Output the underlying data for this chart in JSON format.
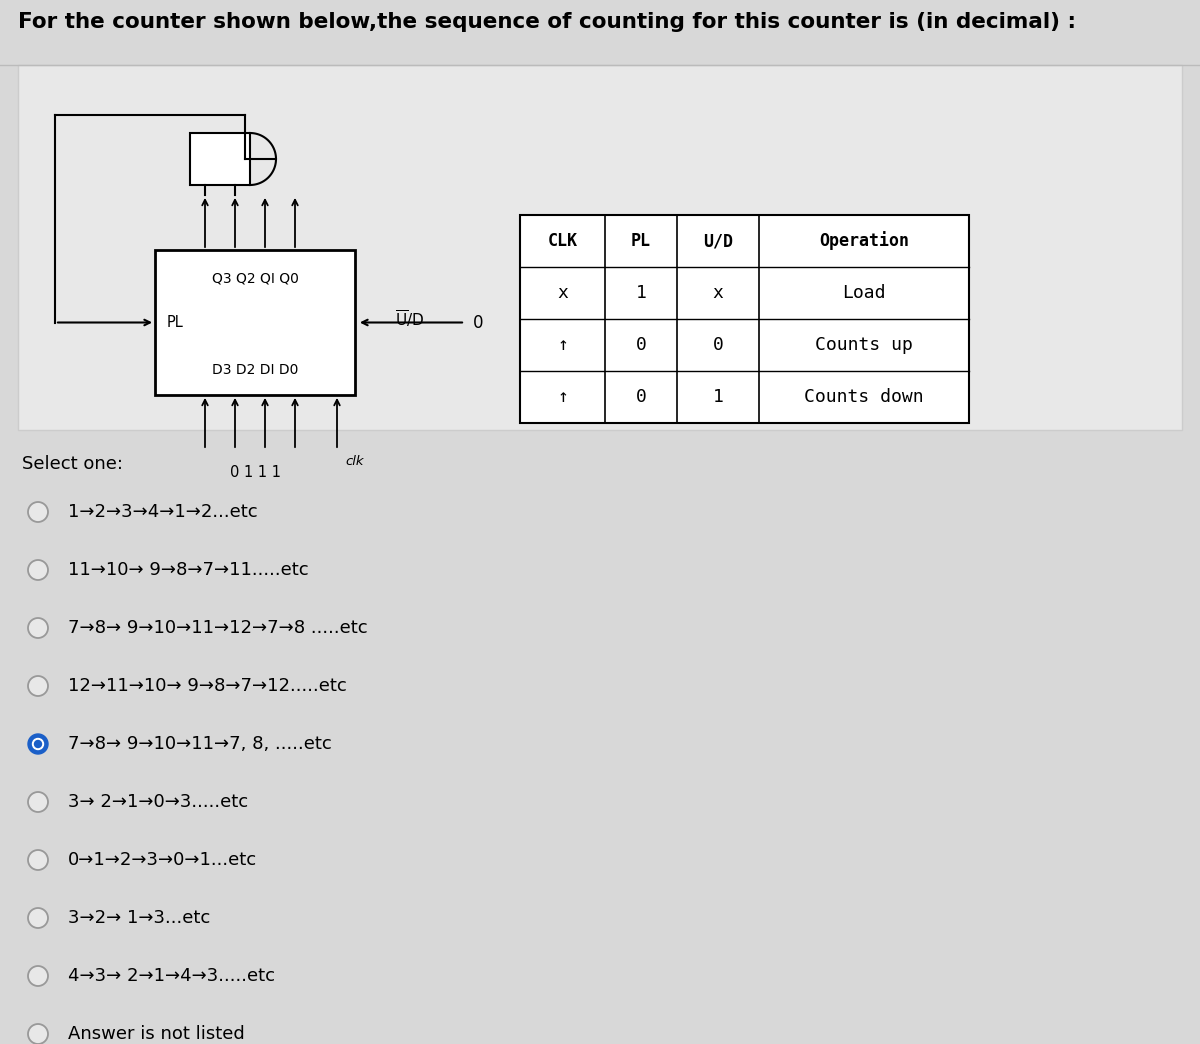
{
  "title": "For the counter shown below,the sequence of counting for this counter is (in decimal) :",
  "bg_color": "#d8d8d8",
  "panel_bg": "#e8e8e8",
  "white": "#ffffff",
  "table_headers": [
    "CLK",
    "PL",
    "U/D",
    "Operation"
  ],
  "table_rows": [
    [
      "x",
      "1",
      "x",
      "Load"
    ],
    [
      "↑",
      "0",
      "0",
      "Counts up"
    ],
    [
      "↑",
      "0",
      "1",
      "Counts down"
    ]
  ],
  "select_one": "Select one:",
  "options": [
    {
      "label": "1→2→3→4→1→2...etc",
      "selected": false
    },
    {
      "label": "11→10→ 9→8→7→11.....etc",
      "selected": false
    },
    {
      "label": "7→8→ 9→10→11→12→7→8 .....etc",
      "selected": false
    },
    {
      "label": "12→11→10→ 9→8→7→12.....etc",
      "selected": false
    },
    {
      "label": "7→8→ 9→10→11→7, 8, .....etc",
      "selected": true
    },
    {
      "label": "3→ 2→1→0→3.....etc",
      "selected": false
    },
    {
      "label": "0→1→2→3→0→1...etc",
      "selected": false
    },
    {
      "label": "3→2→ 1→3...etc",
      "selected": false
    },
    {
      "label": "4→3→ 2→1→4→3.....etc",
      "selected": false
    },
    {
      "label": "Answer is not listed",
      "selected": false
    }
  ],
  "d_values": "0 1 1 1",
  "clk_label": "clk"
}
